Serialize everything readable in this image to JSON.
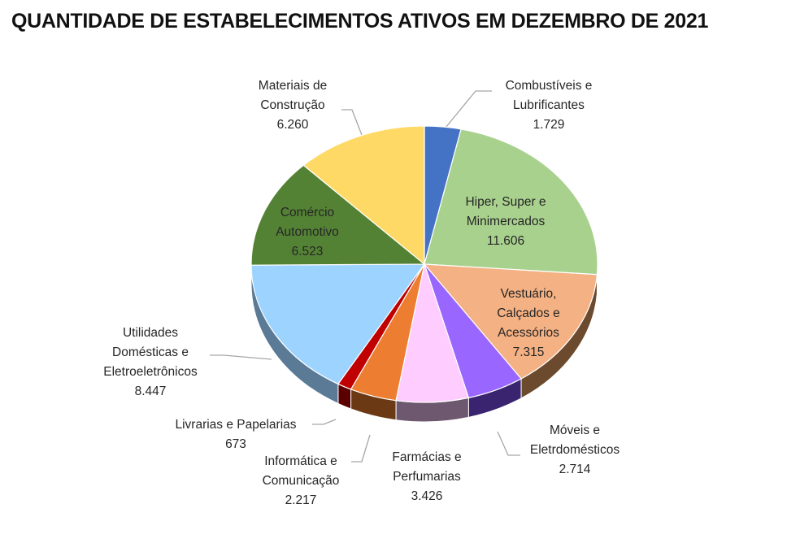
{
  "chart_data": {
    "type": "pie",
    "title": "QUANTIDADE DE ESTABELECIMENTOS ATIVOS EM DEZEMBRO DE 2021",
    "style": "3d",
    "categories": [
      "Combustíveis e Lubrificantes",
      "Hiper, Super e Minimercados",
      "Vestuário, Calçados e Acessórios",
      "Móveis e Eletrdomésticos",
      "Farmácias e Perfumarias",
      "Informática e Comunicação",
      "Livrarias e Papelarias",
      "Utilidades Domésticas e Eletroeletrônicos",
      "Comércio Automotivo",
      "Materiais de Construção"
    ],
    "values": [
      1729,
      11606,
      7315,
      2714,
      3426,
      2217,
      673,
      8447,
      6523,
      6260
    ],
    "value_labels": [
      "1.729",
      "11.606",
      "7.315",
      "2.714",
      "3.426",
      "2.217",
      "673",
      "8.447",
      "6.523",
      "6.260"
    ],
    "colors": [
      "#4472c4",
      "#a9d18e",
      "#f4b183",
      "#9966ff",
      "#ffccff",
      "#ed7d31",
      "#c00000",
      "#9dd3ff",
      "#548235",
      "#ffd966"
    ],
    "side_colors": [
      "#2f4f8a",
      "#6e8a5c",
      "#6b4a2e",
      "#3a2470",
      "#6e5870",
      "#6b3a14",
      "#5a0000",
      "#5a7a96",
      "#35551f",
      "#9c8030"
    ],
    "legend": "none"
  },
  "labels": [
    {
      "text": "Combustíveis e\nLubrificantes\n1.729"
    },
    {
      "text": "Hiper, Super e\nMinimercados\n11.606"
    },
    {
      "text": "Vestuário,\nCalçados e\nAcessórios\n7.315"
    },
    {
      "text": "Móveis e\nEletrdomésticos\n2.714"
    },
    {
      "text": "Farmácias e\nPerfumarias\n3.426"
    },
    {
      "text": "Informática e\nComunicação\n2.217"
    },
    {
      "text": "Livrarias e Papelarias\n673"
    },
    {
      "text": "Utilidades\nDomésticas e\nEletroeletrônicos\n8.447"
    },
    {
      "text": "Comércio\nAutomotivo\n6.523"
    },
    {
      "text": "Materiais de\nConstrução\n6.260"
    }
  ]
}
